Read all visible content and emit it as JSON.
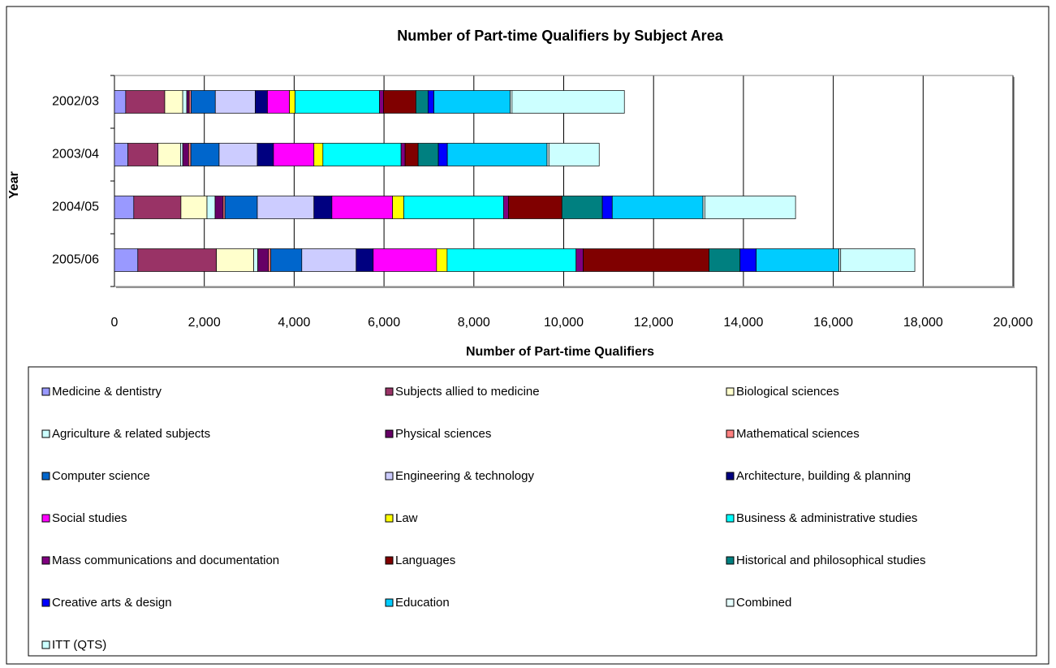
{
  "chart_data": {
    "type": "stacked_barh",
    "title": "Number of Part-time Qualifiers by Subject Area",
    "x_label": "Number of Part-time Qualifiers",
    "y_label": "Year",
    "categories": [
      "2002/03",
      "2003/04",
      "2004/05",
      "2005/06"
    ],
    "xlim": [
      0,
      20000
    ],
    "xticks": [
      0,
      {
        "value": 2000,
        "label": "2,000"
      },
      {
        "value": 4000,
        "label": "4,000"
      },
      {
        "value": 6000,
        "label": "6,000"
      },
      {
        "value": 8000,
        "label": "8,000"
      },
      {
        "value": 10000,
        "label": "10,000"
      },
      {
        "value": 12000,
        "label": "12,000"
      },
      {
        "value": 14000,
        "label": "14,000"
      },
      {
        "value": 16000,
        "label": "16,000"
      },
      {
        "value": 18000,
        "label": "18,000"
      },
      {
        "value": 20000,
        "label": "20,000"
      }
    ],
    "grid": true,
    "legend": "bottom",
    "series": [
      {
        "name": "Medicine & dentistry",
        "color": "#9999ff",
        "values": [
          250,
          300,
          430,
          520
        ]
      },
      {
        "name": "Subjects allied to medicine",
        "color": "#993366",
        "values": [
          870,
          670,
          1050,
          1750
        ]
      },
      {
        "name": "Biological sciences",
        "color": "#ffffcc",
        "values": [
          400,
          500,
          580,
          830
        ]
      },
      {
        "name": "Agriculture & related subjects",
        "color": "#ccffff",
        "values": [
          90,
          50,
          180,
          90
        ]
      },
      {
        "name": "Physical sciences",
        "color": "#660066",
        "values": [
          55,
          130,
          180,
          240
        ]
      },
      {
        "name": "Mathematical sciences",
        "color": "#ff8080",
        "values": [
          40,
          50,
          40,
          50
        ]
      },
      {
        "name": "Computer science",
        "color": "#0066cc",
        "values": [
          540,
          630,
          720,
          690
        ]
      },
      {
        "name": "Engineering & technology",
        "color": "#ccccff",
        "values": [
          890,
          850,
          1260,
          1210
        ]
      },
      {
        "name": "Architecture, building & planning",
        "color": "#000080",
        "values": [
          270,
          360,
          400,
          380
        ]
      },
      {
        "name": "Social studies",
        "color": "#ff00ff",
        "values": [
          490,
          900,
          1350,
          1410
        ]
      },
      {
        "name": "Law",
        "color": "#ffff00",
        "values": [
          125,
          200,
          250,
          235
        ]
      },
      {
        "name": "Business & administrative studies",
        "color": "#00ffff",
        "values": [
          1880,
          1740,
          2220,
          2870
        ]
      },
      {
        "name": "Mass communications and documentation",
        "color": "#800080",
        "values": [
          90,
          90,
          110,
          160
        ]
      },
      {
        "name": "Languages",
        "color": "#800000",
        "values": [
          720,
          290,
          1190,
          2800
        ]
      },
      {
        "name": "Historical and philosophical studies",
        "color": "#008080",
        "values": [
          270,
          450,
          900,
          690
        ]
      },
      {
        "name": "Creative arts & design",
        "color": "#0000ff",
        "values": [
          130,
          200,
          220,
          360
        ]
      },
      {
        "name": "Education",
        "color": "#00ccff",
        "values": [
          1700,
          2220,
          2020,
          1840
        ]
      },
      {
        "name": "Combined",
        "color": "#e6ffff",
        "values": [
          40,
          40,
          40,
          40
        ]
      },
      {
        "name": "ITT (QTS)",
        "color": "#ccffff",
        "values": [
          2500,
          1120,
          2020,
          1650
        ]
      }
    ]
  }
}
